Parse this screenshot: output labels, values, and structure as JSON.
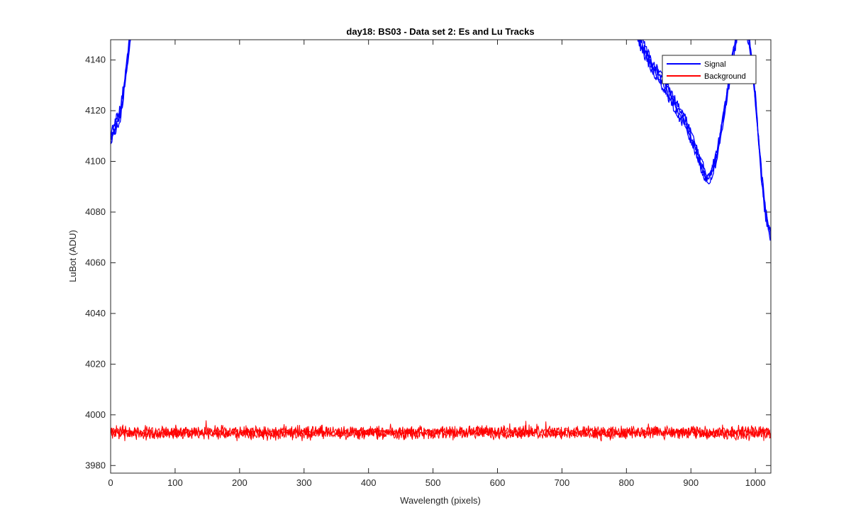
{
  "chart_data": {
    "type": "line",
    "title": "day18: BS03 - Data set 2: Es and Lu Tracks",
    "xlabel": "Wavelength (pixels)",
    "ylabel": "LuBot (ADU)",
    "xlim": [
      0,
      1024
    ],
    "ylim": [
      3977,
      4148
    ],
    "x_ticks": [
      0,
      100,
      200,
      300,
      400,
      500,
      600,
      700,
      800,
      900,
      1000
    ],
    "y_ticks": [
      3980,
      4000,
      4020,
      4040,
      4060,
      4080,
      4100,
      4120,
      4140
    ],
    "grid": false,
    "legend_position": "top-right",
    "series": [
      {
        "name": "Signal",
        "color": "#0000ff",
        "segments": [
          {
            "x": [
              0,
              5,
              10,
              15,
              20,
              25,
              30,
              35
            ],
            "y": [
              4109,
              4112,
              4116,
              4119,
              4128,
              4137,
              4148,
              4158
            ]
          },
          {
            "x": [
              805,
              820,
              830,
              840,
              850,
              860,
              870,
              880,
              890,
              900,
              910,
              920,
              925,
              930,
              940,
              950,
              960,
              965,
              970,
              975,
              980,
              990,
              995,
              1000,
              1005,
              1010,
              1015,
              1020,
              1024
            ],
            "y": [
              4160,
              4148,
              4143,
              4137,
              4134,
              4130,
              4125,
              4120,
              4116,
              4110,
              4103,
              4096,
              4093,
              4094,
              4102,
              4117,
              4133,
              4142,
              4148,
              4155,
              4158,
              4148,
              4138,
              4125,
              4108,
              4093,
              4081,
              4074,
              4071
            ]
          }
        ]
      },
      {
        "name": "Background",
        "color": "#ff0000",
        "mean": 3993,
        "range": [
          3988,
          3998
        ]
      }
    ]
  }
}
